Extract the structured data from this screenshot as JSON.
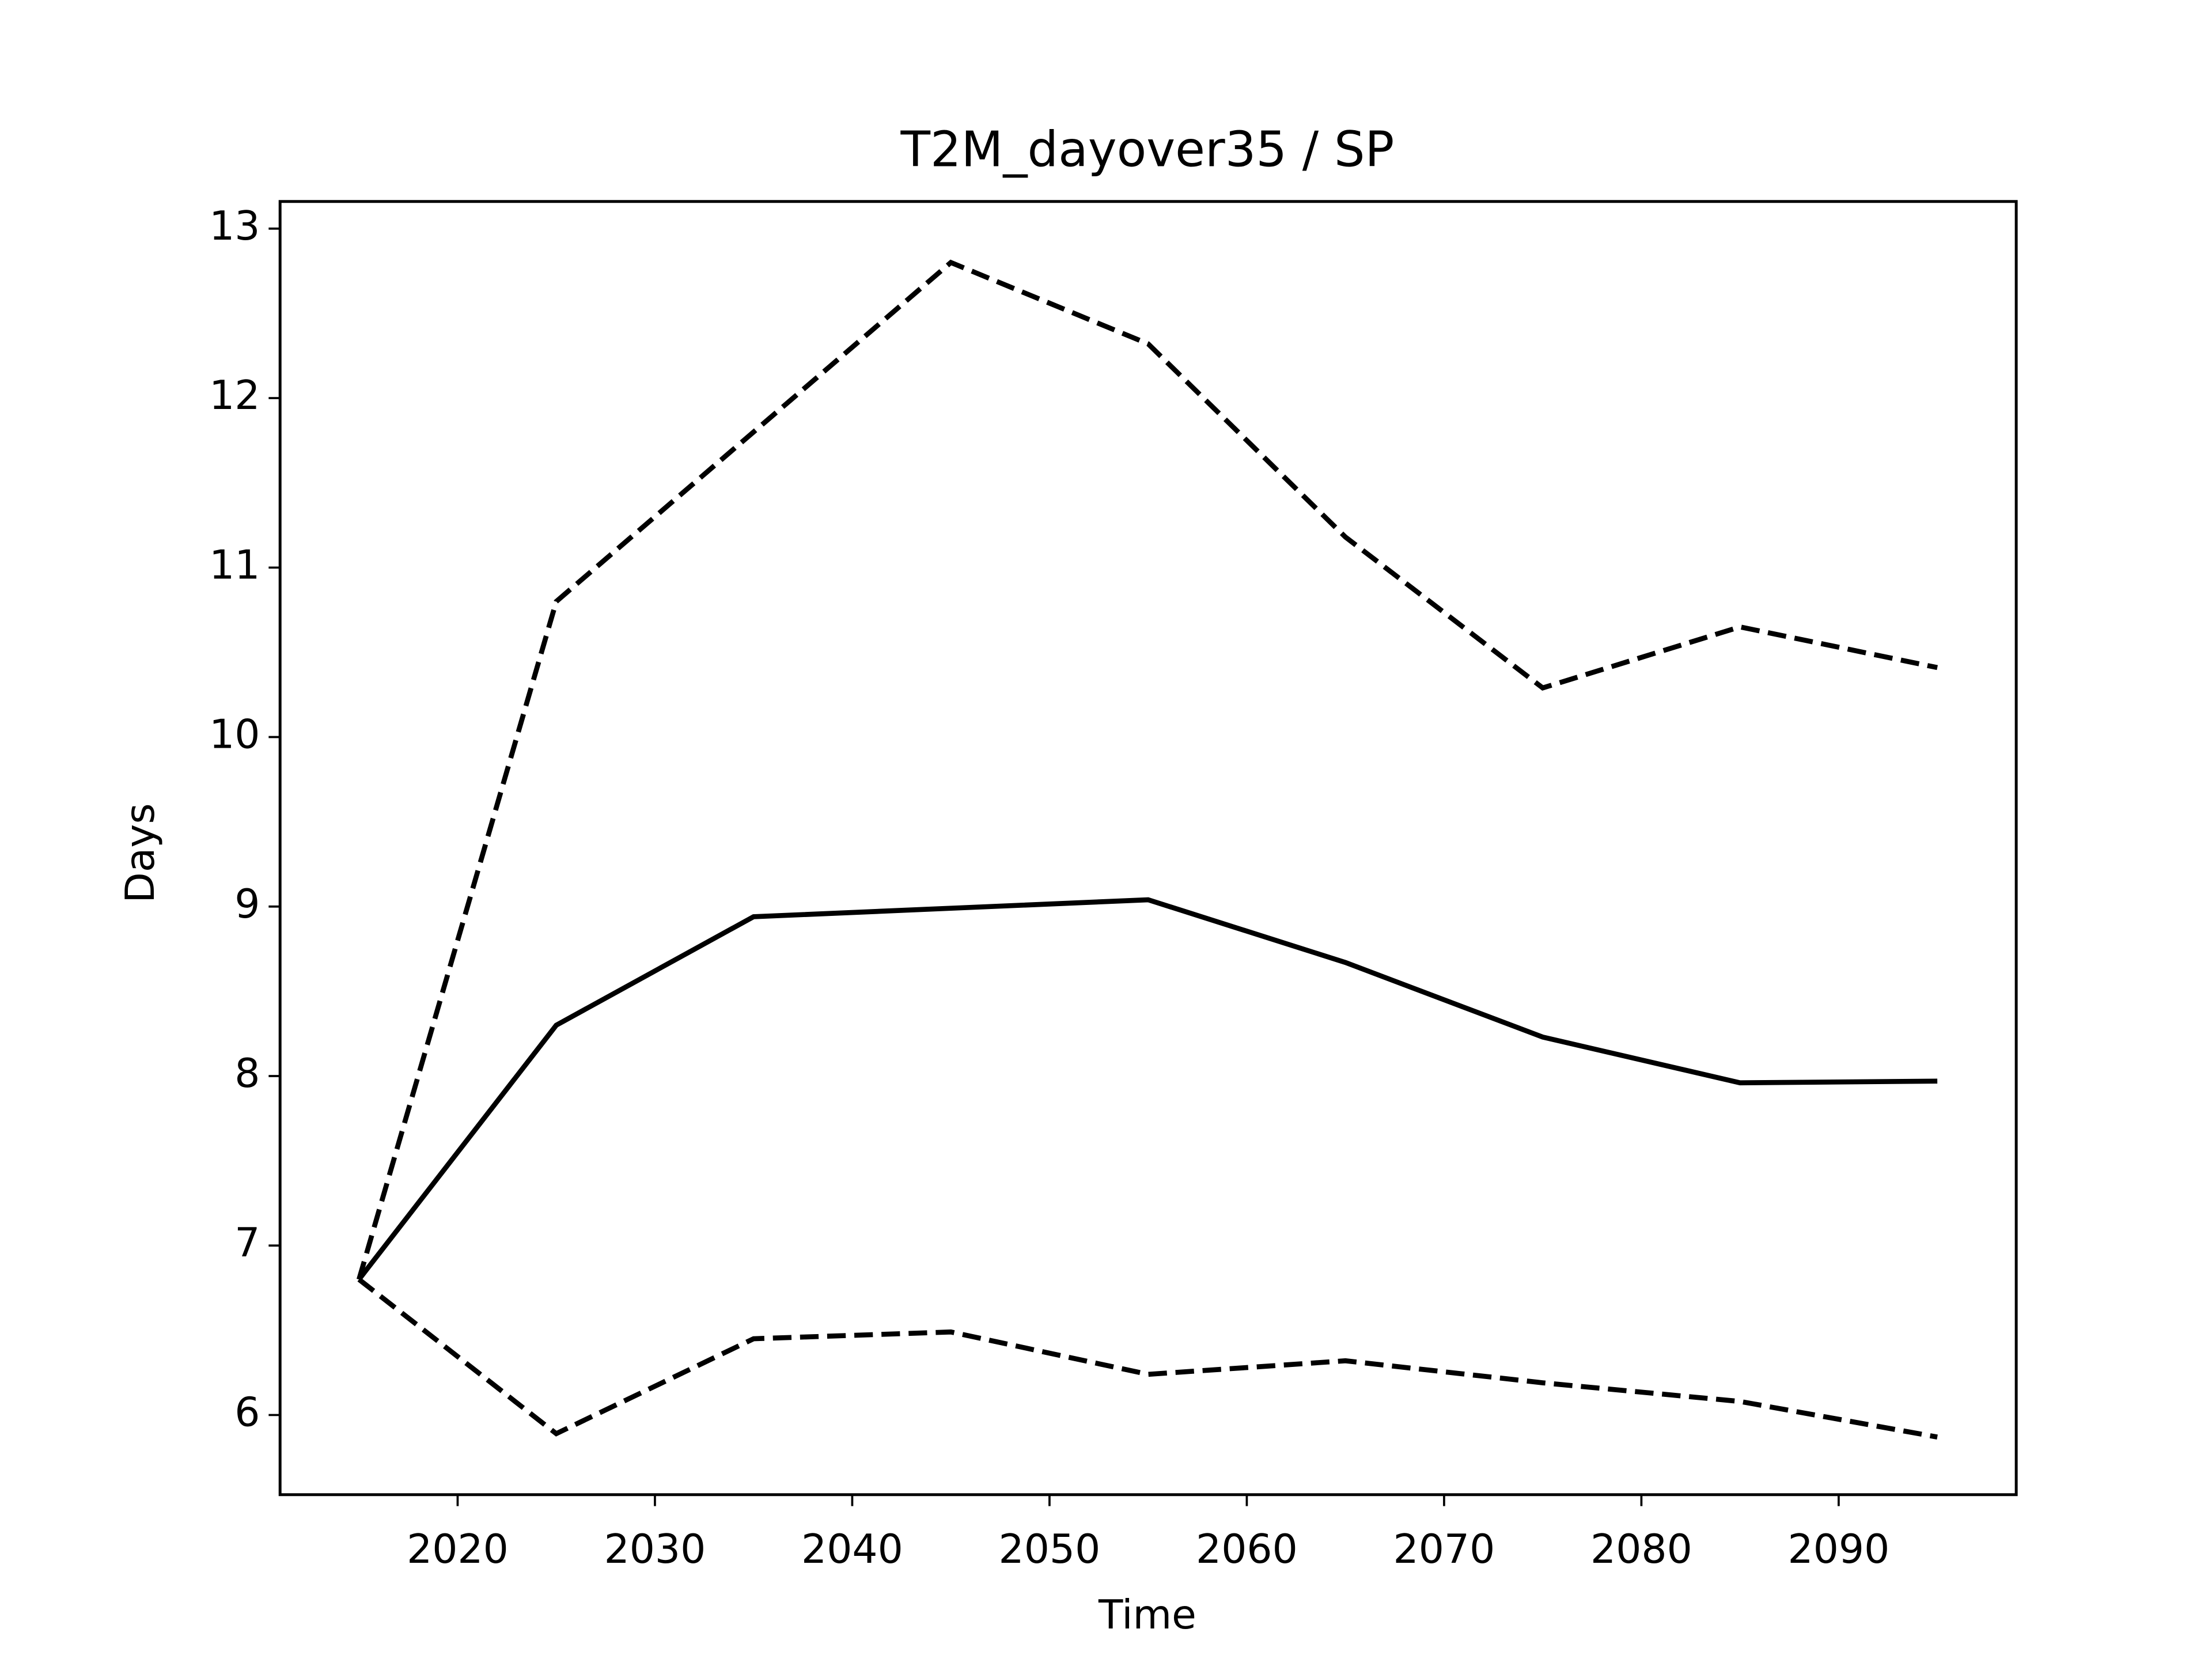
{
  "chart_data": {
    "type": "line",
    "title": "T2M_dayover35 / SP",
    "xlabel": "Time",
    "ylabel": "Days",
    "x": [
      2015,
      2025,
      2035,
      2045,
      2055,
      2065,
      2075,
      2085,
      2095
    ],
    "series": [
      {
        "color": "#000000",
        "linestyle": "solid",
        "values": [
          6.8,
          8.3,
          8.94,
          8.99,
          9.04,
          8.67,
          8.23,
          7.96,
          7.97
        ]
      },
      {
        "color": "#000000",
        "linestyle": "dashed",
        "values": [
          6.8,
          10.8,
          11.8,
          12.8,
          12.32,
          11.18,
          10.29,
          10.65,
          10.41
        ]
      },
      {
        "color": "#000000",
        "linestyle": "dashed",
        "values": [
          6.8,
          5.89,
          6.45,
          6.49,
          6.24,
          6.32,
          6.19,
          6.08,
          5.87
        ]
      }
    ],
    "xlim": [
      2011,
      2099
    ],
    "xticks": [
      2020,
      2030,
      2040,
      2050,
      2060,
      2070,
      2080,
      2090
    ],
    "ylim": [
      5.53,
      13.16
    ],
    "yticks": [
      6,
      7,
      8,
      9,
      10,
      11,
      12,
      13
    ],
    "grid": false
  }
}
